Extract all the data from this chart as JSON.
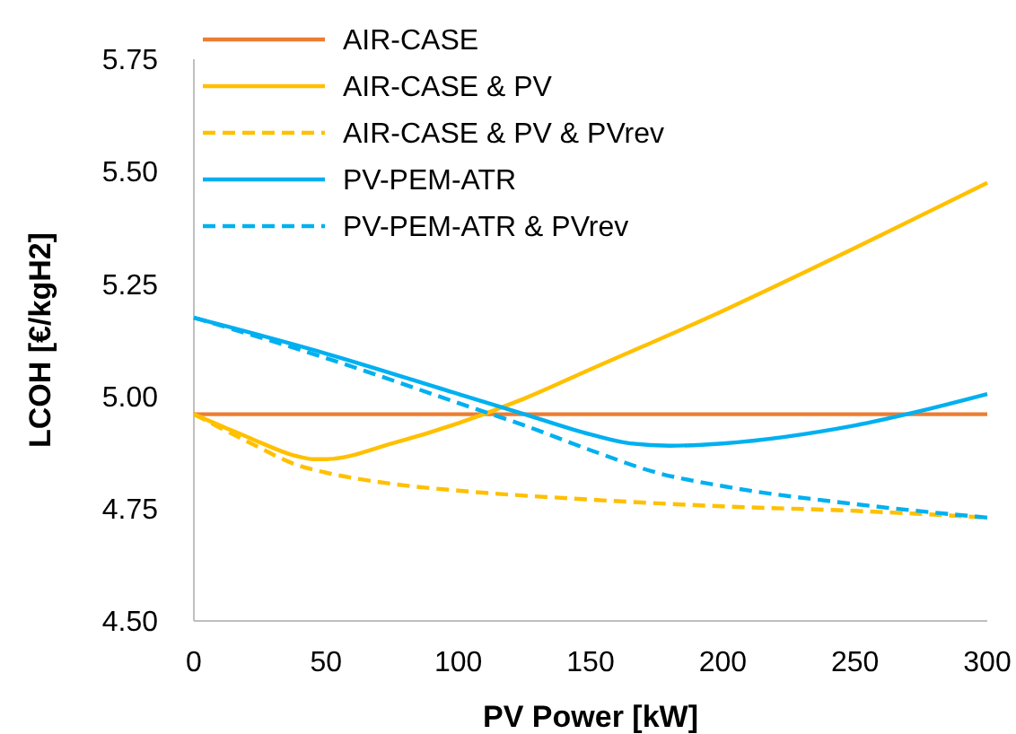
{
  "chart_data": {
    "type": "line",
    "xlabel": "PV Power [kW]",
    "ylabel": "LCOH [€/kgH2]",
    "xlim": [
      0,
      300
    ],
    "xticks": [
      0,
      50,
      100,
      150,
      200,
      250,
      300
    ],
    "ylim": [
      4.5,
      5.75
    ],
    "yticks": [
      {
        "value": 4.5,
        "label": "4.50"
      },
      {
        "value": 4.75,
        "label": "4.75"
      },
      {
        "value": 5,
        "label": "5.00"
      },
      {
        "value": 5.25,
        "label": "5.25"
      },
      {
        "value": 5.5,
        "label": "5.50"
      },
      {
        "value": 5.75,
        "label": "5.75"
      }
    ],
    "grid": false,
    "legend": "top left",
    "marker": "none",
    "series": [
      {
        "name": "AIR-CASE",
        "color": "#ed7d31",
        "line_style": "solid",
        "x": [
          0,
          300
        ],
        "values": [
          4.96,
          4.96
        ]
      },
      {
        "name": "AIR-CASE & PV",
        "color": "#ffc000",
        "line_style": "solid",
        "x": [
          0,
          20,
          40,
          45,
          50,
          75,
          100,
          125,
          150,
          200,
          250,
          300
        ],
        "values": [
          4.96,
          4.91,
          4.865,
          4.86,
          4.86,
          4.895,
          4.94,
          4.995,
          5.06,
          5.19,
          5.33,
          5.475
        ]
      },
      {
        "name": "AIR-CASE & PV & PVrev",
        "color": "#ffc000",
        "line_style": "dashed",
        "x": [
          0,
          20,
          40,
          50,
          75,
          100,
          150,
          200,
          250,
          300
        ],
        "values": [
          4.96,
          4.9,
          4.845,
          4.83,
          4.805,
          4.79,
          4.77,
          4.755,
          4.745,
          4.73
        ]
      },
      {
        "name": "PV-PEM-ATR",
        "color": "#00b0f0",
        "line_style": "solid",
        "x": [
          0,
          50,
          100,
          125,
          150,
          165,
          180,
          200,
          250,
          300
        ],
        "values": [
          5.175,
          5.095,
          5.005,
          4.96,
          4.915,
          4.895,
          4.89,
          4.895,
          4.935,
          5.005
        ]
      },
      {
        "name": "PV-PEM-ATR & PVrev",
        "color": "#00b0f0",
        "line_style": "dashed",
        "x": [
          0,
          50,
          100,
          125,
          150,
          175,
          200,
          250,
          300
        ],
        "values": [
          5.175,
          5.085,
          4.985,
          4.935,
          4.88,
          4.83,
          4.8,
          4.76,
          4.73
        ]
      }
    ]
  }
}
